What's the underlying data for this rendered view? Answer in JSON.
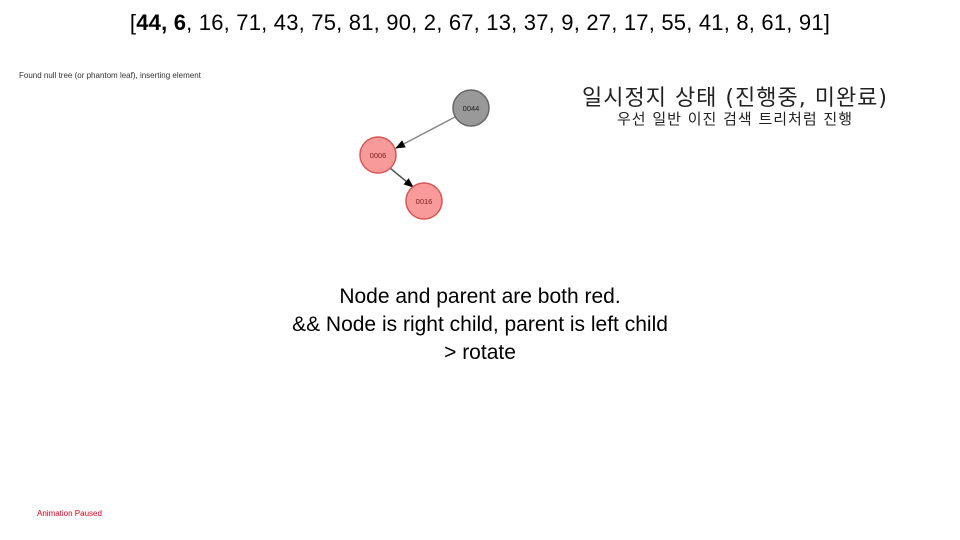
{
  "sequence": {
    "open": "[",
    "highlighted": "44, 6",
    "rest": ", 16, 71, 43, 75, 81, 90, 2, 67, 13, 37, 9, 27, 17, 55, 41, 8, 61, 91",
    "close": "]"
  },
  "status_message": "Found null tree (or phantom leaf), inserting element",
  "paused_title": "일시정지 상태 (진행중, 미완료)",
  "paused_subtitle": "우선 일반 이진 검색 트리처럼 진행",
  "tree": {
    "nodes": [
      {
        "id": "n44",
        "label": "0044",
        "color": "black"
      },
      {
        "id": "n6",
        "label": "0006",
        "color": "red"
      },
      {
        "id": "n16",
        "label": "0016",
        "color": "red"
      }
    ],
    "edges": [
      {
        "from": "n44",
        "to": "n6"
      },
      {
        "from": "n6",
        "to": "n16"
      }
    ]
  },
  "explanation": {
    "line1": "Node and parent are both red.",
    "line2": "&& Node is right child, parent is left child",
    "line3": "> rotate"
  },
  "animation_state": "Animation Paused",
  "colors": {
    "black_node_fill": "#999999",
    "red_node_fill": "#f99a9a",
    "red_node_stroke": "#d65757",
    "status_red": "#e8001c"
  }
}
